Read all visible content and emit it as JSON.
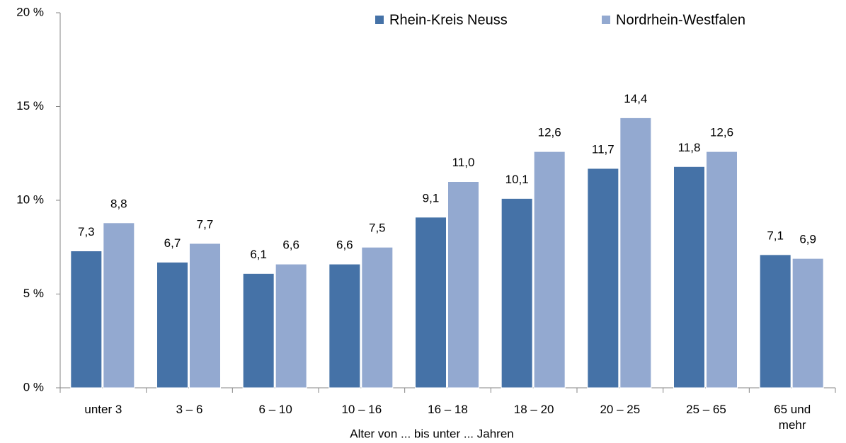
{
  "chart_data": {
    "type": "bar",
    "categories": [
      "unter 3",
      "3 –  6",
      "6 – 10",
      "10 – 16",
      "16 – 18",
      "18 – 20",
      "20 – 25",
      "25 – 65",
      "65 und mehr"
    ],
    "series": [
      {
        "name": "Rhein-Kreis Neuss",
        "color": "#4572a7",
        "values": [
          7.3,
          6.7,
          6.1,
          6.6,
          9.1,
          10.1,
          11.7,
          11.8,
          7.1
        ],
        "value_labels": [
          "7,3",
          "6,7",
          "6,1",
          "6,6",
          "9,1",
          "10,1",
          "11,7",
          "11,8",
          "7,1"
        ]
      },
      {
        "name": "Nordrhein-Westfalen",
        "color": "#93a9d0",
        "values": [
          8.8,
          7.7,
          6.6,
          7.5,
          11.0,
          12.6,
          14.4,
          12.6,
          6.9
        ],
        "value_labels": [
          "8,8",
          "7,7",
          "6,6",
          "7,5",
          "11,0",
          "12,6",
          "14,4",
          "12,6",
          "6,9"
        ]
      }
    ],
    "x_label": "Alter von ... bis unter ... Jahren",
    "ylim": [
      0,
      20
    ],
    "yticks": [
      {
        "value": 0,
        "label": "0 %"
      },
      {
        "value": 5,
        "label": "5 %"
      },
      {
        "value": 10,
        "label": "10 %"
      },
      {
        "value": 15,
        "label": "15 %"
      },
      {
        "value": 20,
        "label": "20 %"
      }
    ],
    "legend": "top"
  }
}
